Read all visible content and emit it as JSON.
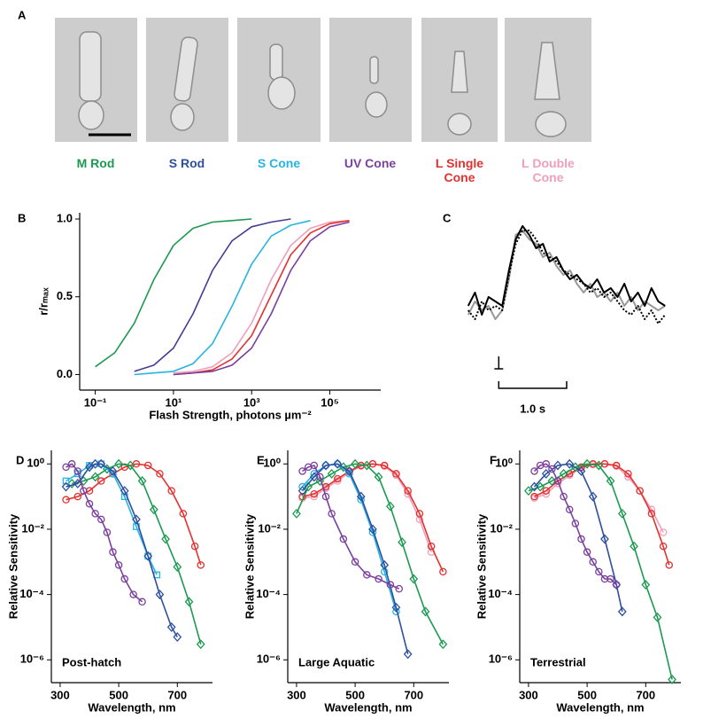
{
  "panel_a": {
    "panel": "A",
    "cells": [
      {
        "name": "M Rod",
        "color": "#1a9a50"
      },
      {
        "name": "S Rod",
        "color": "#2d4f9e"
      },
      {
        "name": "S Cone",
        "color": "#27b3e3"
      },
      {
        "name": "UV Cone",
        "color": "#7b3f9e"
      },
      {
        "name": "L Single Cone",
        "color": "#e3312f"
      },
      {
        "name": "L Double Cone",
        "color": "#ef9fb9"
      }
    ]
  },
  "chart_data": [
    {
      "panel": "B",
      "type": "line",
      "x_label": "Flash Strength, photons µm⁻²",
      "y_label": "r/rₘₐₓ",
      "log_x": true,
      "xlim": [
        0.04,
        2000000
      ],
      "xticks": [
        {
          "value": 0.1,
          "label": "10⁻¹"
        },
        {
          "value": 10,
          "label": "10¹"
        },
        {
          "value": 1000,
          "label": "10³"
        },
        {
          "value": 100000,
          "label": "10⁵"
        }
      ],
      "ylim": [
        -0.1,
        1.04
      ],
      "yticks": [
        {
          "value": 0,
          "label": "0.0"
        },
        0.5,
        {
          "value": 1,
          "label": "1.0"
        }
      ],
      "series": [
        {
          "color": "#1a9a50",
          "x": [
            0.1,
            0.316,
            1,
            3.16,
            10,
            31.6,
            100,
            316,
            1000
          ],
          "values": [
            0.05,
            0.14,
            0.33,
            0.61,
            0.83,
            0.94,
            0.98,
            0.99,
            1.0
          ]
        },
        {
          "color": "#463c92",
          "x": [
            1,
            3.16,
            10,
            31.6,
            100,
            316,
            1000,
            3162,
            10000
          ],
          "values": [
            0.02,
            0.06,
            0.17,
            0.39,
            0.67,
            0.86,
            0.95,
            0.98,
            1.0
          ]
        },
        {
          "color": "#27b3e3",
          "x": [
            1,
            3.16,
            10,
            31.6,
            100,
            316,
            1000,
            3162,
            10000,
            31623
          ],
          "values": [
            0.0,
            0.01,
            0.02,
            0.07,
            0.2,
            0.44,
            0.71,
            0.89,
            0.96,
            0.99
          ]
        },
        {
          "color": "#ef9fb9",
          "x": [
            10,
            31.6,
            100,
            316,
            1000,
            3162,
            10000,
            31623,
            100000,
            316228
          ],
          "values": [
            0.01,
            0.02,
            0.05,
            0.14,
            0.33,
            0.61,
            0.83,
            0.94,
            0.98,
            0.99
          ]
        },
        {
          "color": "#e3312f",
          "x": [
            10,
            31.6,
            100,
            316,
            1000,
            3162,
            10000,
            31623,
            100000,
            316228
          ],
          "values": [
            0.0,
            0.01,
            0.03,
            0.1,
            0.25,
            0.51,
            0.77,
            0.91,
            0.97,
            0.99
          ]
        },
        {
          "color": "#7b3f9e",
          "x": [
            10,
            31.6,
            100,
            316,
            1000,
            3162,
            10000,
            31623,
            100000,
            316228
          ],
          "values": [
            0.0,
            0.01,
            0.02,
            0.06,
            0.17,
            0.39,
            0.67,
            0.86,
            0.95,
            0.98
          ]
        }
      ]
    },
    {
      "panel": "C",
      "type": "line",
      "xlim": [
        -0.5,
        2.5
      ],
      "ylim": [
        -0.4,
        1.05
      ],
      "x": [
        -0.45,
        -0.35,
        -0.25,
        -0.15,
        -0.05,
        0.05,
        0.15,
        0.25,
        0.35,
        0.45,
        0.55,
        0.65,
        0.75,
        0.85,
        0.95,
        1.05,
        1.15,
        1.25,
        1.35,
        1.45,
        1.55,
        1.65,
        1.75,
        1.85,
        1.95,
        2.05,
        2.15,
        2.25,
        2.35,
        2.45
      ],
      "scale_bar": {
        "value": 1.0,
        "label": "1.0 s"
      },
      "series": [
        {
          "color": "#999999",
          "values": [
            -0.05,
            0.1,
            0.0,
            0.05,
            -0.1,
            0.0,
            0.35,
            0.85,
            0.9,
            0.8,
            0.75,
            0.6,
            0.65,
            0.5,
            0.4,
            0.45,
            0.3,
            0.2,
            0.3,
            0.15,
            0.2,
            0.1,
            0.2,
            0.05,
            0.15,
            0.0,
            0.1,
            0.05,
            0.0,
            0.05
          ]
        },
        {
          "color": "#000000",
          "dash": true,
          "values": [
            0.0,
            -0.1,
            0.1,
            0.0,
            0.05,
            0.0,
            0.4,
            0.75,
            0.9,
            0.9,
            0.8,
            0.65,
            0.6,
            0.55,
            0.45,
            0.4,
            0.35,
            0.3,
            0.2,
            0.25,
            0.15,
            0.2,
            0.1,
            0.0,
            -0.05,
            0.05,
            -0.1,
            0.0,
            -0.15,
            -0.05
          ]
        },
        {
          "color": "#000000",
          "values": [
            0.05,
            0.2,
            -0.05,
            0.15,
            0.1,
            0.05,
            0.45,
            0.8,
            0.95,
            0.85,
            0.7,
            0.75,
            0.55,
            0.6,
            0.45,
            0.35,
            0.4,
            0.3,
            0.25,
            0.35,
            0.2,
            0.25,
            0.15,
            0.3,
            0.1,
            0.2,
            0.05,
            0.25,
            0.1,
            0.05
          ]
        }
      ]
    },
    {
      "panel": "D",
      "type": "line",
      "annotation": "Post-hatch",
      "x_label": "Wavelength, nm",
      "y_label": "Relative Sensitivity",
      "log_y": true,
      "xlim": [
        270,
        820
      ],
      "xticks": [
        300,
        500,
        700
      ],
      "ylim": [
        2e-07,
        2.6
      ],
      "yticks": [
        {
          "value": 1,
          "label": "10⁰"
        },
        {
          "value": 0.01,
          "label": "10⁻²"
        },
        {
          "value": 0.0001,
          "label": "10⁻⁴"
        },
        {
          "value": 1e-06,
          "label": "10⁻⁶"
        }
      ],
      "series": [
        {
          "color": "#e3312f",
          "marker": "circle",
          "x": [
            320,
            360,
            400,
            440,
            480,
            520,
            560,
            600,
            640,
            680,
            720,
            760,
            780
          ],
          "values": [
            0.08,
            0.1,
            0.15,
            0.3,
            0.5,
            0.8,
            1.0,
            0.9,
            0.5,
            0.15,
            0.03,
            0.003,
            0.0008
          ]
        },
        {
          "color": "#1a9a50",
          "marker": "diamond",
          "x": [
            340,
            380,
            420,
            460,
            500,
            540,
            580,
            620,
            660,
            700,
            740,
            780
          ],
          "values": [
            0.25,
            0.3,
            0.4,
            0.7,
            1.0,
            0.9,
            0.3,
            0.04,
            0.005,
            0.0007,
            6e-05,
            3e-06
          ]
        },
        {
          "color": "#27b3e3",
          "marker": "square",
          "x": [
            320,
            360,
            400,
            440,
            480,
            520,
            560,
            600,
            630
          ],
          "values": [
            0.3,
            0.5,
            0.9,
            1.0,
            0.5,
            0.1,
            0.012,
            0.0015,
            0.0004
          ]
        },
        {
          "color": "#2d4f9e",
          "marker": "diamond",
          "x": [
            320,
            360,
            400,
            420,
            440,
            480,
            520,
            560,
            600,
            640,
            680,
            700
          ],
          "values": [
            0.2,
            0.25,
            0.8,
            1.0,
            1.0,
            0.6,
            0.15,
            0.02,
            0.0015,
            0.0001,
            1e-05,
            5e-06
          ]
        },
        {
          "color": "#7b3f9e",
          "marker": "circle",
          "x": [
            320,
            340,
            360,
            380,
            400,
            420,
            440,
            460,
            480,
            500,
            520,
            550,
            580
          ],
          "values": [
            0.8,
            1.0,
            0.6,
            0.15,
            0.06,
            0.03,
            0.02,
            0.008,
            0.002,
            0.0008,
            0.0003,
            0.0001,
            6e-05
          ]
        }
      ]
    },
    {
      "panel": "E",
      "type": "line",
      "annotation": "Large Aquatic",
      "x_label": "Wavelength, nm",
      "y_label": "Relative Sensitivity",
      "log_y": true,
      "xlim": [
        270,
        820
      ],
      "xticks": [
        300,
        500,
        700
      ],
      "ylim": [
        2e-07,
        2.6
      ],
      "yticks": [
        {
          "value": 1,
          "label": "10⁰"
        },
        {
          "value": 0.01,
          "label": "10⁻²"
        },
        {
          "value": 0.0001,
          "label": "10⁻⁴"
        },
        {
          "value": 1e-06,
          "label": "10⁻⁶"
        }
      ],
      "series": [
        {
          "color": "#ef9fb9",
          "marker": "circle",
          "x": [
            320,
            360,
            400,
            440,
            480,
            520,
            560,
            600,
            640,
            680,
            720,
            760
          ],
          "values": [
            0.09,
            0.1,
            0.18,
            0.3,
            0.55,
            0.85,
            1.0,
            0.85,
            0.45,
            0.12,
            0.02,
            0.002
          ]
        },
        {
          "color": "#e3312f",
          "marker": "circle",
          "x": [
            320,
            360,
            400,
            440,
            480,
            520,
            560,
            600,
            640,
            680,
            720,
            760,
            800
          ],
          "values": [
            0.1,
            0.12,
            0.2,
            0.35,
            0.6,
            0.9,
            1.0,
            0.9,
            0.5,
            0.15,
            0.03,
            0.003,
            0.0005
          ]
        },
        {
          "color": "#1a9a50",
          "marker": "diamond",
          "x": [
            300,
            340,
            380,
            420,
            460,
            500,
            540,
            580,
            620,
            660,
            700,
            740,
            800
          ],
          "values": [
            0.03,
            0.2,
            0.3,
            0.5,
            0.8,
            1.0,
            0.9,
            0.4,
            0.05,
            0.004,
            0.0003,
            3e-05,
            3e-06
          ]
        },
        {
          "color": "#27b3e3",
          "marker": "circle",
          "x": [
            320,
            360,
            400,
            440,
            480,
            520,
            560,
            600,
            640
          ],
          "values": [
            0.2,
            0.5,
            0.9,
            1.0,
            0.5,
            0.08,
            0.008,
            0.0005,
            3e-05
          ]
        },
        {
          "color": "#2d4f9e",
          "marker": "diamond",
          "x": [
            320,
            360,
            400,
            440,
            480,
            520,
            560,
            600,
            640,
            680
          ],
          "values": [
            0.15,
            0.4,
            0.9,
            1.0,
            0.6,
            0.1,
            0.01,
            0.0008,
            4e-05,
            1.5e-06
          ]
        },
        {
          "color": "#7b3f9e",
          "marker": "circle",
          "x": [
            320,
            340,
            360,
            380,
            400,
            420,
            460,
            500,
            540,
            580,
            620,
            650
          ],
          "values": [
            0.6,
            0.8,
            0.9,
            0.4,
            0.1,
            0.03,
            0.005,
            0.001,
            0.0004,
            0.0003,
            0.0002,
            0.00015
          ]
        }
      ]
    },
    {
      "panel": "F",
      "type": "line",
      "annotation": "Terrestrial",
      "x_label": "Wavelength, nm",
      "y_label": "Relative Sensitivity",
      "log_y": true,
      "xlim": [
        270,
        820
      ],
      "xticks": [
        300,
        500,
        700
      ],
      "ylim": [
        2e-07,
        2.6
      ],
      "yticks": [
        {
          "value": 1,
          "label": "10⁰"
        },
        {
          "value": 0.01,
          "label": "10⁻²"
        },
        {
          "value": 0.0001,
          "label": "10⁻⁴"
        },
        {
          "value": 1e-06,
          "label": "10⁻⁶"
        }
      ],
      "series": [
        {
          "color": "#ef9fb9",
          "marker": "circle",
          "x": [
            320,
            360,
            400,
            440,
            480,
            520,
            560,
            600,
            640,
            680,
            720,
            760
          ],
          "values": [
            0.09,
            0.12,
            0.25,
            0.45,
            0.75,
            0.95,
            1.0,
            0.85,
            0.4,
            0.15,
            0.04,
            0.008
          ]
        },
        {
          "color": "#e3312f",
          "marker": "circle",
          "x": [
            320,
            360,
            400,
            440,
            480,
            520,
            560,
            600,
            640,
            680,
            720,
            760,
            780
          ],
          "values": [
            0.1,
            0.15,
            0.3,
            0.5,
            0.8,
            1.0,
            1.0,
            0.9,
            0.5,
            0.15,
            0.03,
            0.003,
            0.0008
          ]
        },
        {
          "color": "#1a9a50",
          "marker": "diamond",
          "x": [
            300,
            340,
            380,
            420,
            460,
            500,
            540,
            580,
            620,
            660,
            700,
            740,
            790
          ],
          "values": [
            0.15,
            0.2,
            0.3,
            0.5,
            0.8,
            1.0,
            0.9,
            0.3,
            0.03,
            0.003,
            0.0002,
            2e-05,
            2.5e-07
          ]
        },
        {
          "color": "#2d4f9e",
          "marker": "diamond",
          "x": [
            320,
            360,
            400,
            440,
            480,
            520,
            560,
            600,
            620
          ],
          "values": [
            0.2,
            0.5,
            0.9,
            1.0,
            0.6,
            0.1,
            0.005,
            0.0002,
            3e-05
          ]
        },
        {
          "color": "#7b3f9e",
          "marker": "circle",
          "x": [
            320,
            340,
            360,
            380,
            400,
            420,
            440,
            460,
            480,
            500,
            520,
            540,
            560,
            580,
            600
          ],
          "values": [
            0.6,
            0.9,
            1.0,
            0.7,
            0.3,
            0.1,
            0.04,
            0.015,
            0.005,
            0.002,
            0.001,
            0.0005,
            0.0003,
            0.0003,
            0.0002
          ]
        }
      ]
    }
  ]
}
